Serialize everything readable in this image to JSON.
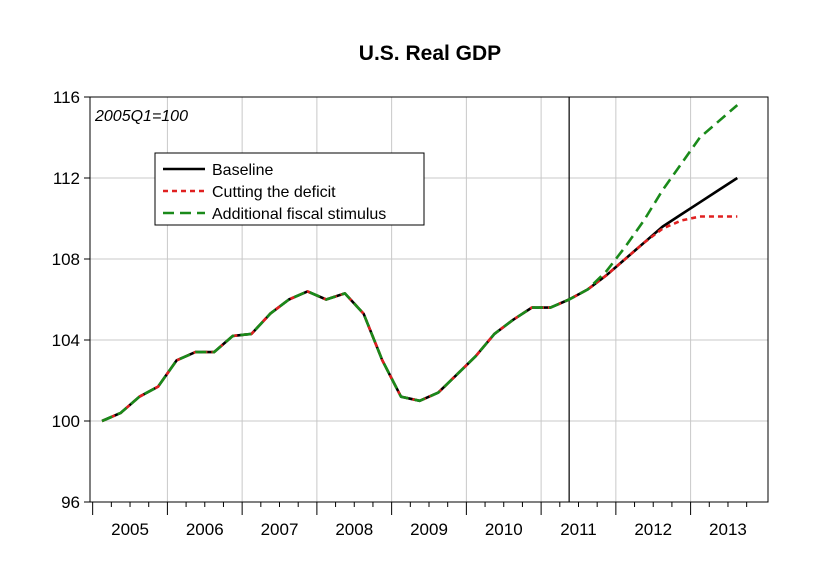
{
  "chart_data": {
    "type": "line",
    "title": "U.S. Real GDP",
    "annotation": "2005Q1=100",
    "xlabel": "",
    "ylabel": "",
    "ylim": [
      96,
      116
    ],
    "yticks": [
      96,
      100,
      104,
      108,
      112,
      116
    ],
    "xlim": [
      2005.0,
      2013.75
    ],
    "year_labels": [
      "2005",
      "2006",
      "2007",
      "2008",
      "2009",
      "2010",
      "2011",
      "2012",
      "2013"
    ],
    "grid": true,
    "legend_position": "upper-left",
    "vertical_marker": 2011.25,
    "x": [
      2005.0,
      2005.25,
      2005.5,
      2005.75,
      2006.0,
      2006.25,
      2006.5,
      2006.75,
      2007.0,
      2007.25,
      2007.5,
      2007.75,
      2008.0,
      2008.25,
      2008.5,
      2008.75,
      2009.0,
      2009.25,
      2009.5,
      2009.75,
      2010.0,
      2010.25,
      2010.5,
      2010.75,
      2011.0,
      2011.25,
      2011.5,
      2011.75,
      2012.0,
      2012.25,
      2012.5,
      2012.75,
      2013.0,
      2013.25,
      2013.5
    ],
    "series": [
      {
        "name": "Baseline",
        "color": "#000000",
        "style": "solid",
        "values": [
          100.0,
          100.4,
          101.2,
          101.7,
          103.0,
          103.4,
          103.4,
          104.2,
          104.3,
          105.3,
          106.0,
          106.4,
          106.0,
          106.3,
          105.3,
          103.0,
          101.2,
          101.0,
          101.4,
          102.3,
          103.2,
          104.3,
          105.0,
          105.6,
          105.6,
          106.0,
          106.5,
          107.2,
          108.0,
          108.8,
          109.6,
          110.2,
          110.8,
          111.4,
          112.0
        ]
      },
      {
        "name": "Cutting the deficit",
        "color": "#e02020",
        "style": "short-dash",
        "values": [
          100.0,
          100.4,
          101.2,
          101.7,
          103.0,
          103.4,
          103.4,
          104.2,
          104.3,
          105.3,
          106.0,
          106.4,
          106.0,
          106.3,
          105.3,
          103.0,
          101.2,
          101.0,
          101.4,
          102.3,
          103.2,
          104.3,
          105.0,
          105.6,
          105.6,
          106.0,
          106.5,
          107.2,
          108.0,
          108.8,
          109.5,
          109.9,
          110.1,
          110.1,
          110.1
        ]
      },
      {
        "name": "Additional fiscal stimulus",
        "color": "#1a8a1a",
        "style": "long-dash",
        "values": [
          100.0,
          100.4,
          101.2,
          101.7,
          103.0,
          103.4,
          103.4,
          104.2,
          104.3,
          105.3,
          106.0,
          106.4,
          106.0,
          106.3,
          105.3,
          103.0,
          101.2,
          101.0,
          101.4,
          102.3,
          103.2,
          104.3,
          105.0,
          105.6,
          105.6,
          106.0,
          106.5,
          107.4,
          108.6,
          109.9,
          111.4,
          112.7,
          114.0,
          114.8,
          115.6
        ]
      }
    ]
  }
}
